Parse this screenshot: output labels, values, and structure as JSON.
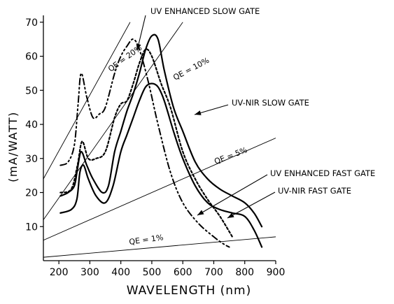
{
  "chart_data": {
    "type": "line",
    "xlabel": "WAVELENGTH (nm)",
    "ylabel": "(mA/WATT)",
    "xlim": [
      150,
      900
    ],
    "ylim": [
      0,
      72
    ],
    "x_ticks": [
      200,
      300,
      400,
      500,
      600,
      700,
      800,
      900
    ],
    "y_ticks": [
      10,
      20,
      30,
      40,
      50,
      60,
      70
    ],
    "grid": false,
    "legend": "none",
    "annotations": [
      "UV ENHANCED SLOW GATE",
      "UV-NIR SLOW GATE",
      "UV ENHANCED FAST GATE",
      "UV-NIR FAST GATE"
    ],
    "qe_lines": [
      {
        "label": "QE = 20%",
        "points": [
          [
            150,
            24
          ],
          [
            430,
            70
          ]
        ]
      },
      {
        "label": "QE = 10%",
        "points": [
          [
            150,
            12
          ],
          [
            600,
            70
          ]
        ]
      },
      {
        "label": "QE = 5%",
        "points": [
          [
            150,
            6
          ],
          [
            900,
            36
          ]
        ]
      },
      {
        "label": "QE = 1%",
        "points": [
          [
            150,
            1
          ],
          [
            900,
            7
          ]
        ]
      }
    ],
    "series": [
      {
        "label": "UV ENHANCED SLOW GATE",
        "style": "dashdot",
        "x": [
          205,
          230,
          250,
          262,
          272,
          290,
          310,
          330,
          350,
          380,
          400,
          420,
          440,
          460,
          490,
          520,
          560,
          600,
          650,
          700,
          730,
          750
        ],
        "y": [
          28,
          29,
          34,
          46,
          55,
          48,
          42,
          43,
          45,
          55,
          60,
          63,
          65,
          62,
          52,
          40,
          26,
          17,
          11,
          7,
          5,
          4
        ]
      },
      {
        "label": "UV ENHANCED FAST GATE",
        "style": "dotted",
        "x": [
          205,
          240,
          260,
          275,
          295,
          320,
          350,
          380,
          400,
          420,
          440,
          460,
          480,
          500,
          530,
          560,
          600,
          640,
          680,
          720,
          760
        ],
        "y": [
          20,
          21,
          28,
          35,
          30,
          30,
          32,
          42,
          46,
          47,
          52,
          58,
          62,
          60,
          52,
          45,
          32,
          24,
          18,
          13,
          7
        ]
      },
      {
        "label": "UV-NIR SLOW GATE",
        "style": "solid",
        "x": [
          205,
          230,
          250,
          260,
          272,
          290,
          310,
          340,
          360,
          380,
          400,
          420,
          440,
          460,
          480,
          500,
          520,
          540,
          570,
          600,
          640,
          680,
          720,
          760,
          800,
          830,
          855
        ],
        "y": [
          19,
          20,
          22,
          27,
          32,
          28,
          24,
          20,
          22,
          32,
          38,
          44,
          49,
          55,
          62,
          66,
          65,
          56,
          45,
          38,
          29,
          24,
          21,
          19,
          17,
          14,
          10
        ]
      },
      {
        "label": "UV-NIR FAST GATE",
        "style": "solid",
        "x": [
          205,
          240,
          258,
          268,
          280,
          295,
          320,
          350,
          375,
          400,
          420,
          440,
          460,
          480,
          500,
          520,
          540,
          570,
          600,
          640,
          680,
          720,
          760,
          800,
          830,
          855
        ],
        "y": [
          14,
          15,
          18,
          26,
          28,
          24,
          19,
          17,
          22,
          32,
          37,
          42,
          47,
          51,
          52,
          51,
          47,
          38,
          30,
          22,
          17,
          15,
          14,
          13,
          9,
          4
        ]
      }
    ]
  }
}
